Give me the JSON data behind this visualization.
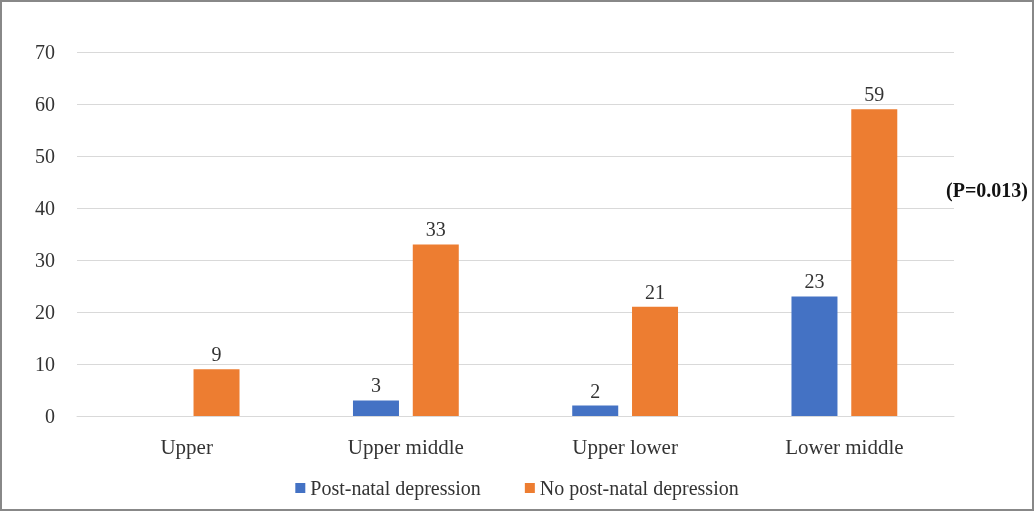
{
  "chart_data": {
    "type": "bar",
    "categories": [
      "Upper",
      "Upper middle",
      "Upper lower",
      "Lower middle"
    ],
    "series": [
      {
        "name": "Post-natal depression",
        "color": "#4472c4",
        "values": [
          0,
          3,
          2,
          23
        ],
        "value_labels": [
          null,
          "3",
          "2",
          "23"
        ]
      },
      {
        "name": "No post-natal depression",
        "color": "#ed7d31",
        "values": [
          9,
          33,
          21,
          59
        ],
        "value_labels": [
          "9",
          "33",
          "21",
          "59"
        ]
      }
    ],
    "ylim": [
      0,
      70
    ],
    "yticks": [
      0,
      10,
      20,
      30,
      40,
      50,
      60,
      70
    ],
    "grid": "y",
    "legend": "bottom",
    "annotations": [
      "(P=0.013)"
    ]
  }
}
